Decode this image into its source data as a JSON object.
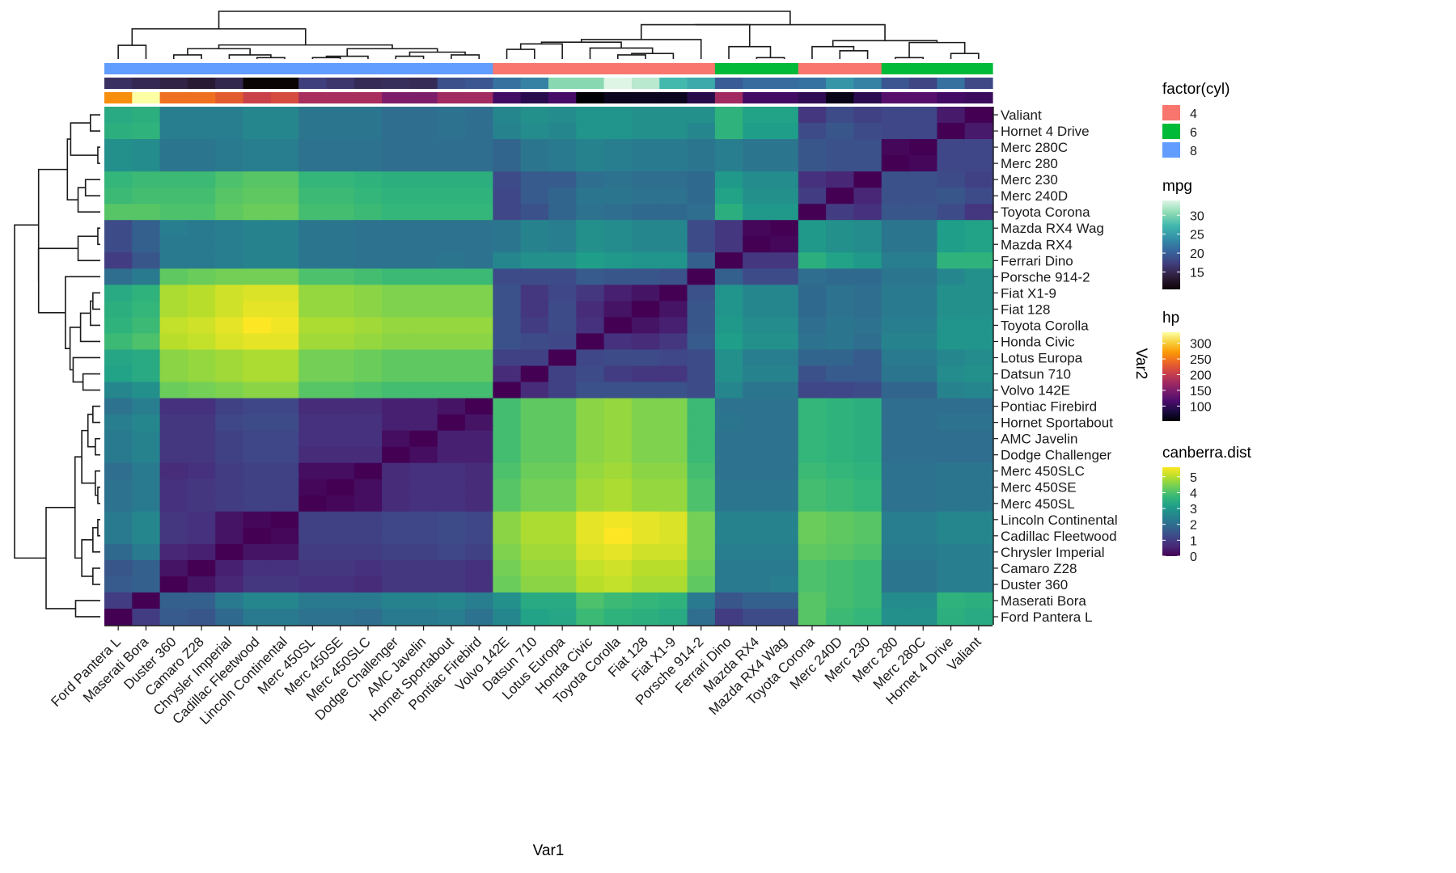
{
  "chart_data": {
    "type": "heatmap",
    "title": "",
    "xlabel": "Var1",
    "ylabel": "Var2",
    "x": [
      "Ford Pantera L",
      "Maserati Bora",
      "Duster 360",
      "Camaro Z28",
      "Chrysler Imperial",
      "Cadillac Fleetwood",
      "Lincoln Continental",
      "Merc 450SL",
      "Merc 450SE",
      "Merc 450SLC",
      "Dodge Challenger",
      "AMC Javelin",
      "Hornet Sportabout",
      "Pontiac Firebird",
      "Volvo 142E",
      "Datsun 710",
      "Lotus Europa",
      "Honda Civic",
      "Toyota Corolla",
      "Fiat 128",
      "Fiat X1-9",
      "Porsche 914-2",
      "Ferrari Dino",
      "Mazda RX4",
      "Mazda RX4 Wag",
      "Toyota Corona",
      "Merc 240D",
      "Merc 230",
      "Merc 280",
      "Merc 280C",
      "Hornet 4 Drive",
      "Valiant"
    ],
    "y": [
      "Valiant",
      "Hornet 4 Drive",
      "Merc 280C",
      "Merc 280",
      "Merc 230",
      "Merc 240D",
      "Toyota Corona",
      "Mazda RX4 Wag",
      "Mazda RX4",
      "Ferrari Dino",
      "Porsche 914-2",
      "Fiat X1-9",
      "Fiat 128",
      "Toyota Corolla",
      "Honda Civic",
      "Lotus Europa",
      "Datsun 710",
      "Volvo 142E",
      "Pontiac Firebird",
      "Hornet Sportabout",
      "AMC Javelin",
      "Dodge Challenger",
      "Merc 450SLC",
      "Merc 450SE",
      "Merc 450SL",
      "Lincoln Continental",
      "Cadillac Fleetwood",
      "Chrysler Imperial",
      "Camaro Z28",
      "Duster 360",
      "Maserati Bora",
      "Ford Pantera L"
    ],
    "fill_legend": {
      "title": "canberra.dist",
      "ticks": [
        0,
        1,
        2,
        3,
        4,
        5
      ],
      "range": [
        0,
        5.6
      ],
      "palette": "viridis"
    },
    "matrix_note": "values[i][j] = canberra distance between car x[i] and car x[j] (approximate, read from colors)",
    "values": [
      [
        0.0,
        1.0,
        1.6,
        1.5,
        1.9,
        2.3,
        2.3,
        2.1,
        2.1,
        2.0,
        2.3,
        2.3,
        2.4,
        2.1,
        2.6,
        3.2,
        3.3,
        3.8,
        3.6,
        3.5,
        3.4,
        2.0,
        1.0,
        1.3,
        1.3,
        4.1,
        3.8,
        3.7,
        2.8,
        2.8,
        3.5,
        3.4
      ],
      [
        1.0,
        0.0,
        1.7,
        1.7,
        2.3,
        2.6,
        2.6,
        2.3,
        2.3,
        2.3,
        2.5,
        2.5,
        2.6,
        2.4,
        2.8,
        3.4,
        3.4,
        4.0,
        3.8,
        3.7,
        3.6,
        2.3,
        1.5,
        1.7,
        1.7,
        4.1,
        3.9,
        3.8,
        2.7,
        2.7,
        3.6,
        3.5
      ],
      [
        1.6,
        1.7,
        0.0,
        0.3,
        0.6,
        0.9,
        0.9,
        0.8,
        0.8,
        0.7,
        0.9,
        0.9,
        0.9,
        0.8,
        4.3,
        4.6,
        4.6,
        5.0,
        5.1,
        4.9,
        4.9,
        4.2,
        2.3,
        2.3,
        2.4,
        4.0,
        3.9,
        3.8,
        2.2,
        2.2,
        2.4,
        2.4
      ],
      [
        1.5,
        1.7,
        0.3,
        0.0,
        0.5,
        0.8,
        0.8,
        0.9,
        0.9,
        0.8,
        0.9,
        0.9,
        0.9,
        0.8,
        4.4,
        4.7,
        4.7,
        5.1,
        5.2,
        5.0,
        5.0,
        4.3,
        2.3,
        2.3,
        2.3,
        4.0,
        3.9,
        3.8,
        2.2,
        2.2,
        2.4,
        2.4
      ],
      [
        1.9,
        2.3,
        0.6,
        0.5,
        0.0,
        0.3,
        0.3,
        1.0,
        1.0,
        1.0,
        1.1,
        1.1,
        1.2,
        1.1,
        4.5,
        4.8,
        4.8,
        5.3,
        5.4,
        5.2,
        5.2,
        4.4,
        2.4,
        2.4,
        2.4,
        4.2,
        4.1,
        4.0,
        2.3,
        2.3,
        2.4,
        2.4
      ],
      [
        2.3,
        2.6,
        0.9,
        0.8,
        0.3,
        0.0,
        0.1,
        1.1,
        1.1,
        1.1,
        1.2,
        1.2,
        1.3,
        1.2,
        4.6,
        4.9,
        4.9,
        5.4,
        5.6,
        5.4,
        5.3,
        4.4,
        2.5,
        2.5,
        2.5,
        4.3,
        4.2,
        4.1,
        2.4,
        2.4,
        2.6,
        2.6
      ],
      [
        2.3,
        2.6,
        0.9,
        0.8,
        0.3,
        0.1,
        0.0,
        1.1,
        1.1,
        1.1,
        1.2,
        1.2,
        1.3,
        1.2,
        4.6,
        4.9,
        4.9,
        5.4,
        5.5,
        5.4,
        5.3,
        4.4,
        2.5,
        2.5,
        2.5,
        4.3,
        4.2,
        4.1,
        2.4,
        2.4,
        2.6,
        2.6
      ],
      [
        2.1,
        2.3,
        0.8,
        0.9,
        1.0,
        1.1,
        1.1,
        0.0,
        0.1,
        0.2,
        0.7,
        0.8,
        0.8,
        0.7,
        4.1,
        4.4,
        4.4,
        4.8,
        4.9,
        4.7,
        4.7,
        4.0,
        2.2,
        2.2,
        2.2,
        3.9,
        3.8,
        3.7,
        2.1,
        2.1,
        2.2,
        2.2
      ],
      [
        2.1,
        2.3,
        0.8,
        0.9,
        1.0,
        1.1,
        1.1,
        0.1,
        0.0,
        0.2,
        0.7,
        0.8,
        0.8,
        0.7,
        4.1,
        4.4,
        4.4,
        4.8,
        4.9,
        4.7,
        4.7,
        4.0,
        2.2,
        2.2,
        2.2,
        3.9,
        3.8,
        3.7,
        2.1,
        2.1,
        2.2,
        2.2
      ],
      [
        2.0,
        2.3,
        0.7,
        0.8,
        1.0,
        1.1,
        1.1,
        0.2,
        0.2,
        0.0,
        0.7,
        0.8,
        0.8,
        0.7,
        4.0,
        4.3,
        4.3,
        4.7,
        4.8,
        4.6,
        4.6,
        3.9,
        2.1,
        2.1,
        2.1,
        3.8,
        3.7,
        3.6,
        2.1,
        2.1,
        2.2,
        2.2
      ],
      [
        2.3,
        2.5,
        0.9,
        0.9,
        1.1,
        1.2,
        1.2,
        0.7,
        0.7,
        0.7,
        0.0,
        0.2,
        0.5,
        0.5,
        3.9,
        4.2,
        4.2,
        4.6,
        4.7,
        4.5,
        4.5,
        3.8,
        2.1,
        2.1,
        2.1,
        3.7,
        3.6,
        3.5,
        2.0,
        2.0,
        2.0,
        2.0
      ],
      [
        2.3,
        2.5,
        0.9,
        0.9,
        1.1,
        1.2,
        1.2,
        0.8,
        0.8,
        0.8,
        0.2,
        0.0,
        0.5,
        0.5,
        3.9,
        4.2,
        4.2,
        4.6,
        4.7,
        4.5,
        4.5,
        3.8,
        2.1,
        2.1,
        2.1,
        3.7,
        3.6,
        3.5,
        2.0,
        2.0,
        2.0,
        2.0
      ],
      [
        2.4,
        2.6,
        0.9,
        0.9,
        1.2,
        1.3,
        1.3,
        0.8,
        0.8,
        0.8,
        0.5,
        0.5,
        0.0,
        0.3,
        3.9,
        4.2,
        4.2,
        4.6,
        4.7,
        4.5,
        4.5,
        3.8,
        2.2,
        2.1,
        2.1,
        3.7,
        3.6,
        3.5,
        2.0,
        2.0,
        2.1,
        2.1
      ],
      [
        2.1,
        2.4,
        0.8,
        0.8,
        1.1,
        1.2,
        1.2,
        0.7,
        0.7,
        0.7,
        0.5,
        0.5,
        0.3,
        0.0,
        3.9,
        4.2,
        4.2,
        4.6,
        4.7,
        4.5,
        4.5,
        3.8,
        2.1,
        2.1,
        2.1,
        3.7,
        3.6,
        3.5,
        2.0,
        2.0,
        2.0,
        2.0
      ],
      [
        2.6,
        2.8,
        4.3,
        4.4,
        4.5,
        4.6,
        4.6,
        4.1,
        4.1,
        4.0,
        3.9,
        3.9,
        3.9,
        3.9,
        0.0,
        0.7,
        1.1,
        1.4,
        1.4,
        1.4,
        1.4,
        1.3,
        2.6,
        2.2,
        2.2,
        1.2,
        1.2,
        1.3,
        1.8,
        1.8,
        2.5,
        2.6
      ],
      [
        3.2,
        3.4,
        4.6,
        4.7,
        4.8,
        4.9,
        4.9,
        4.4,
        4.4,
        4.3,
        4.2,
        4.2,
        4.2,
        4.2,
        0.7,
        0.0,
        1.1,
        1.3,
        1.0,
        0.9,
        0.9,
        1.3,
        2.8,
        2.5,
        2.5,
        1.4,
        1.6,
        1.6,
        2.2,
        2.2,
        2.7,
        2.8
      ],
      [
        3.3,
        3.4,
        4.6,
        4.7,
        4.8,
        4.9,
        4.9,
        4.4,
        4.4,
        4.3,
        4.2,
        4.2,
        4.2,
        4.2,
        1.1,
        1.1,
        0.0,
        1.2,
        1.3,
        1.3,
        1.2,
        1.3,
        2.8,
        2.4,
        2.4,
        1.8,
        1.8,
        1.6,
        2.3,
        2.3,
        2.6,
        2.7
      ],
      [
        3.8,
        4.0,
        5.0,
        5.1,
        5.3,
        5.4,
        5.4,
        4.8,
        4.8,
        4.7,
        4.6,
        4.6,
        4.6,
        4.6,
        1.4,
        1.3,
        1.2,
        0.0,
        0.8,
        0.7,
        0.9,
        1.6,
        3.1,
        2.8,
        2.8,
        2.1,
        2.2,
        2.0,
        2.5,
        2.5,
        2.9,
        2.9
      ],
      [
        3.6,
        3.8,
        5.1,
        5.2,
        5.4,
        5.6,
        5.5,
        4.9,
        4.9,
        4.8,
        4.7,
        4.7,
        4.7,
        4.7,
        1.4,
        1.0,
        1.3,
        0.8,
        0.0,
        0.3,
        0.5,
        1.5,
        3.0,
        2.7,
        2.7,
        2.0,
        2.2,
        2.1,
        2.4,
        2.4,
        2.9,
        2.9
      ],
      [
        3.5,
        3.7,
        4.9,
        5.0,
        5.2,
        5.4,
        5.4,
        4.7,
        4.7,
        4.6,
        4.5,
        4.5,
        4.5,
        4.5,
        1.4,
        0.9,
        1.3,
        0.7,
        0.3,
        0.0,
        0.3,
        1.5,
        2.9,
        2.6,
        2.6,
        1.9,
        2.1,
        2.0,
        2.3,
        2.3,
        2.8,
        2.8
      ],
      [
        3.4,
        3.6,
        4.9,
        5.0,
        5.2,
        5.3,
        5.3,
        4.7,
        4.7,
        4.6,
        4.5,
        4.5,
        4.5,
        4.5,
        1.4,
        0.9,
        1.2,
        0.9,
        0.5,
        0.3,
        0.0,
        1.4,
        2.9,
        2.6,
        2.6,
        1.9,
        2.1,
        2.0,
        2.3,
        2.3,
        2.8,
        2.8
      ],
      [
        2.0,
        2.3,
        4.2,
        4.3,
        4.4,
        4.4,
        4.4,
        4.0,
        4.0,
        3.9,
        3.8,
        3.8,
        3.8,
        3.8,
        1.3,
        1.3,
        1.3,
        1.6,
        1.5,
        1.5,
        1.4,
        0.0,
        1.7,
        1.3,
        1.3,
        2.0,
        1.9,
        1.9,
        2.2,
        2.2,
        2.6,
        2.8
      ],
      [
        1.0,
        1.5,
        2.3,
        2.3,
        2.4,
        2.5,
        2.5,
        2.2,
        2.2,
        2.1,
        2.1,
        2.1,
        2.2,
        2.1,
        2.6,
        2.8,
        2.8,
        3.1,
        3.0,
        2.9,
        2.9,
        1.7,
        0.0,
        0.9,
        0.9,
        3.5,
        3.2,
        3.0,
        2.4,
        2.4,
        3.6,
        3.6
      ],
      [
        1.3,
        1.7,
        2.3,
        2.3,
        2.4,
        2.5,
        2.5,
        2.2,
        2.2,
        2.1,
        2.1,
        2.1,
        2.1,
        2.1,
        2.2,
        2.5,
        2.4,
        2.8,
        2.7,
        2.6,
        2.6,
        1.3,
        0.9,
        0.0,
        0.1,
        3.0,
        2.8,
        2.7,
        2.2,
        2.2,
        3.1,
        3.2
      ],
      [
        1.3,
        1.7,
        2.4,
        2.3,
        2.4,
        2.5,
        2.5,
        2.2,
        2.2,
        2.1,
        2.1,
        2.1,
        2.1,
        2.1,
        2.2,
        2.5,
        2.4,
        2.8,
        2.7,
        2.6,
        2.6,
        1.3,
        0.9,
        0.1,
        0.0,
        3.0,
        2.8,
        2.7,
        2.2,
        2.2,
        3.1,
        3.2
      ],
      [
        4.1,
        4.1,
        4.0,
        4.0,
        4.2,
        4.3,
        4.3,
        3.9,
        3.9,
        3.8,
        3.7,
        3.7,
        3.7,
        3.7,
        1.2,
        1.4,
        1.8,
        2.1,
        2.0,
        1.9,
        1.9,
        2.0,
        3.5,
        3.0,
        3.0,
        0.0,
        1.0,
        0.8,
        1.5,
        1.5,
        1.3,
        0.9
      ],
      [
        3.8,
        3.9,
        3.9,
        3.9,
        4.1,
        4.2,
        4.2,
        3.8,
        3.8,
        3.7,
        3.6,
        3.6,
        3.6,
        3.6,
        1.2,
        1.6,
        1.8,
        2.2,
        2.2,
        2.1,
        2.1,
        1.9,
        3.2,
        2.8,
        2.8,
        1.0,
        0.0,
        0.6,
        1.4,
        1.4,
        1.5,
        1.3
      ],
      [
        3.7,
        3.8,
        3.8,
        3.8,
        4.0,
        4.1,
        4.1,
        3.7,
        3.7,
        3.6,
        3.5,
        3.5,
        3.5,
        3.5,
        1.3,
        1.6,
        1.6,
        2.0,
        2.1,
        2.0,
        2.0,
        1.9,
        3.0,
        2.7,
        2.7,
        0.8,
        0.6,
        0.0,
        1.4,
        1.4,
        1.3,
        1.1
      ],
      [
        2.8,
        2.7,
        2.2,
        2.2,
        2.3,
        2.4,
        2.4,
        2.1,
        2.1,
        2.1,
        2.0,
        2.0,
        2.0,
        2.0,
        1.8,
        2.2,
        2.3,
        2.5,
        2.4,
        2.3,
        2.3,
        2.2,
        2.4,
        2.2,
        2.2,
        1.5,
        1.4,
        1.4,
        0.0,
        0.1,
        1.2,
        1.2
      ],
      [
        2.8,
        2.7,
        2.2,
        2.2,
        2.3,
        2.4,
        2.4,
        2.1,
        2.1,
        2.1,
        2.0,
        2.0,
        2.0,
        2.0,
        1.8,
        2.2,
        2.3,
        2.5,
        2.4,
        2.3,
        2.3,
        2.2,
        2.4,
        2.2,
        2.2,
        1.5,
        1.4,
        1.4,
        0.1,
        0.0,
        1.2,
        1.2
      ],
      [
        3.5,
        3.6,
        2.4,
        2.4,
        2.4,
        2.6,
        2.6,
        2.2,
        2.2,
        2.2,
        2.0,
        2.0,
        2.1,
        2.0,
        2.5,
        2.7,
        2.6,
        2.9,
        2.9,
        2.8,
        2.8,
        2.6,
        3.6,
        3.1,
        3.1,
        1.3,
        1.5,
        1.3,
        1.2,
        1.2,
        0.0,
        0.4
      ],
      [
        3.4,
        3.5,
        2.4,
        2.4,
        2.4,
        2.6,
        2.6,
        2.2,
        2.2,
        2.2,
        2.0,
        2.0,
        2.1,
        2.0,
        2.6,
        2.8,
        2.7,
        2.9,
        2.9,
        2.8,
        2.8,
        2.8,
        3.6,
        3.2,
        3.2,
        0.9,
        1.3,
        1.1,
        1.2,
        1.2,
        0.4,
        0.0
      ]
    ],
    "annotations": {
      "cyl": {
        "legend_title": "factor(cyl)",
        "levels": [
          {
            "label": "4",
            "color": "#F8766D"
          },
          {
            "label": "6",
            "color": "#00BA38"
          },
          {
            "label": "8",
            "color": "#619CFF"
          }
        ],
        "values": [
          8,
          8,
          8,
          8,
          8,
          8,
          8,
          8,
          8,
          8,
          8,
          8,
          8,
          8,
          4,
          4,
          4,
          4,
          4,
          4,
          4,
          4,
          6,
          6,
          6,
          4,
          4,
          4,
          6,
          6,
          6,
          6
        ]
      },
      "mpg": {
        "legend_title": "mpg",
        "ticks": [
          15,
          20,
          25,
          30
        ],
        "range": [
          10.4,
          33.9
        ],
        "palette": "mako",
        "values": [
          15.8,
          15.0,
          14.3,
          13.3,
          14.7,
          10.4,
          10.4,
          17.3,
          16.4,
          15.2,
          15.5,
          15.2,
          18.7,
          19.2,
          21.4,
          22.8,
          30.4,
          30.4,
          33.9,
          32.4,
          27.3,
          26.0,
          19.7,
          21.0,
          21.0,
          21.5,
          24.4,
          22.8,
          19.2,
          17.8,
          21.4,
          18.1
        ]
      },
      "hp": {
        "legend_title": "hp",
        "ticks": [
          100,
          150,
          200,
          250,
          300
        ],
        "range": [
          52,
          335
        ],
        "palette": "inferno",
        "values": [
          264,
          335,
          245,
          245,
          230,
          205,
          215,
          180,
          180,
          180,
          150,
          150,
          175,
          175,
          109,
          93,
          113,
          52,
          65,
          66,
          66,
          91,
          175,
          110,
          110,
          97,
          62,
          95,
          123,
          123,
          110,
          105
        ]
      }
    },
    "legends": [
      {
        "title": "factor(cyl)",
        "labels": [
          "4",
          "6",
          "8"
        ]
      },
      {
        "title": "mpg",
        "labels": [
          "30",
          "25",
          "20",
          "15"
        ]
      },
      {
        "title": "hp",
        "labels": [
          "300",
          "250",
          "200",
          "150",
          "100"
        ]
      },
      {
        "title": "canberra.dist",
        "labels": [
          "5",
          "4",
          "3",
          "2",
          "1",
          "0"
        ]
      }
    ],
    "legend_placement": "right",
    "dendrograms": [
      "top (columns)",
      "left (rows)"
    ]
  }
}
